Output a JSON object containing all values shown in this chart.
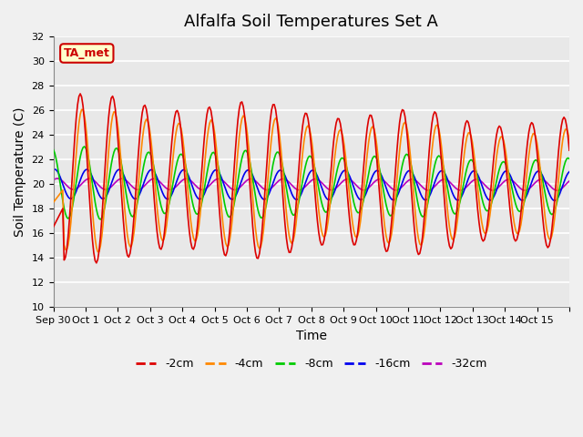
{
  "title": "Alfalfa Soil Temperatures Set A",
  "xlabel": "Time",
  "ylabel": "Soil Temperature (C)",
  "ylim": [
    10,
    32
  ],
  "yticks": [
    10,
    12,
    14,
    16,
    18,
    20,
    22,
    24,
    26,
    28,
    30,
    32
  ],
  "xtick_labels": [
    "Sep 30",
    "Oct 1",
    "Oct 2",
    "Oct 3",
    "Oct 4",
    "Oct 5",
    "Oct 6",
    "Oct 7",
    "Oct 8",
    "Oct 9",
    "Oct 10",
    "Oct 11",
    "Oct 12",
    "Oct 13",
    "Oct 14",
    "Oct 15"
  ],
  "legend_entries": [
    "-2cm",
    "-4cm",
    "-8cm",
    "-16cm",
    "-32cm"
  ],
  "line_colors": [
    "#dd0000",
    "#ff8800",
    "#00cc00",
    "#0000ee",
    "#bb00bb"
  ],
  "plot_bg_color": "#e8e8e8",
  "fig_bg_color": "#f0f0f0",
  "annotation_text": "TA_met",
  "annotation_bg": "#ffffcc",
  "annotation_border": "#cc0000",
  "title_fontsize": 13,
  "label_fontsize": 10,
  "tick_fontsize": 8
}
